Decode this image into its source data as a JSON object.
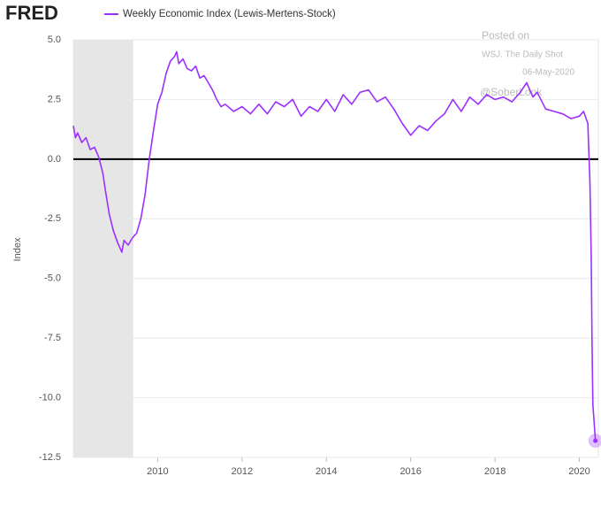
{
  "chart_data": {
    "type": "line",
    "logo": "FRED",
    "legend": "Weekly Economic Index (Lewis-Mertens-Stock)",
    "ylabel": "Index",
    "annotations": [
      "Posted on",
      "WSJ. The Daily Shot",
      "06-May-2020",
      "@SoberLook"
    ],
    "xlim": [
      2008,
      2020.45
    ],
    "xticks": [
      2010,
      2012,
      2014,
      2016,
      2018,
      2020
    ],
    "ylim": [
      -12.5,
      5
    ],
    "yticks": [
      {
        "value": 5,
        "label": "5.0"
      },
      2.5,
      {
        "value": 0,
        "label": "0.0"
      },
      -2.5,
      {
        "value": -5,
        "label": "-5.0"
      },
      -7.5,
      {
        "value": -10,
        "label": "-10.0"
      },
      -12.5
    ],
    "grid": true,
    "zero_line": true,
    "highlight_last": true,
    "shaded_ranges": [
      [
        2008,
        2009.42
      ]
    ],
    "series": [
      {
        "name": "Weekly Economic Index (Lewis-Mertens-Stock)",
        "color": "#9b30ff",
        "x": [
          2008.0,
          2008.05,
          2008.1,
          2008.2,
          2008.3,
          2008.4,
          2008.5,
          2008.6,
          2008.7,
          2008.75,
          2008.85,
          2008.95,
          2009.05,
          2009.15,
          2009.2,
          2009.3,
          2009.4,
          2009.5,
          2009.6,
          2009.7,
          2009.8,
          2009.9,
          2010.0,
          2010.1,
          2010.2,
          2010.3,
          2010.4,
          2010.45,
          2010.5,
          2010.6,
          2010.7,
          2010.8,
          2010.9,
          2011.0,
          2011.1,
          2011.2,
          2011.3,
          2011.4,
          2011.5,
          2011.6,
          2011.8,
          2012.0,
          2012.2,
          2012.4,
          2012.6,
          2012.8,
          2013.0,
          2013.2,
          2013.4,
          2013.6,
          2013.8,
          2014.0,
          2014.2,
          2014.4,
          2014.6,
          2014.8,
          2015.0,
          2015.2,
          2015.4,
          2015.6,
          2015.8,
          2016.0,
          2016.2,
          2016.4,
          2016.6,
          2016.8,
          2017.0,
          2017.2,
          2017.4,
          2017.6,
          2017.8,
          2018.0,
          2018.2,
          2018.4,
          2018.6,
          2018.75,
          2018.9,
          2019.0,
          2019.2,
          2019.4,
          2019.6,
          2019.8,
          2020.0,
          2020.1,
          2020.2,
          2020.25,
          2020.28,
          2020.3,
          2020.32,
          2020.35,
          2020.38
        ],
        "values": [
          1.4,
          0.9,
          1.1,
          0.7,
          0.9,
          0.4,
          0.5,
          0.1,
          -0.6,
          -1.2,
          -2.3,
          -3.0,
          -3.5,
          -3.9,
          -3.4,
          -3.6,
          -3.3,
          -3.1,
          -2.5,
          -1.5,
          0.0,
          1.2,
          2.3,
          2.8,
          3.6,
          4.1,
          4.3,
          4.5,
          4.0,
          4.2,
          3.8,
          3.7,
          3.9,
          3.4,
          3.5,
          3.2,
          2.9,
          2.5,
          2.2,
          2.3,
          2.0,
          2.2,
          1.9,
          2.3,
          1.9,
          2.4,
          2.2,
          2.5,
          1.8,
          2.2,
          2.0,
          2.5,
          2.0,
          2.7,
          2.3,
          2.8,
          2.9,
          2.4,
          2.6,
          2.1,
          1.5,
          1.0,
          1.4,
          1.2,
          1.6,
          1.9,
          2.5,
          2.0,
          2.6,
          2.3,
          2.7,
          2.5,
          2.6,
          2.4,
          2.8,
          3.2,
          2.6,
          2.8,
          2.1,
          2.0,
          1.9,
          1.7,
          1.8,
          2.0,
          1.5,
          -1.0,
          -4.0,
          -7.5,
          -10.3,
          -11.0,
          -11.8
        ]
      }
    ]
  }
}
